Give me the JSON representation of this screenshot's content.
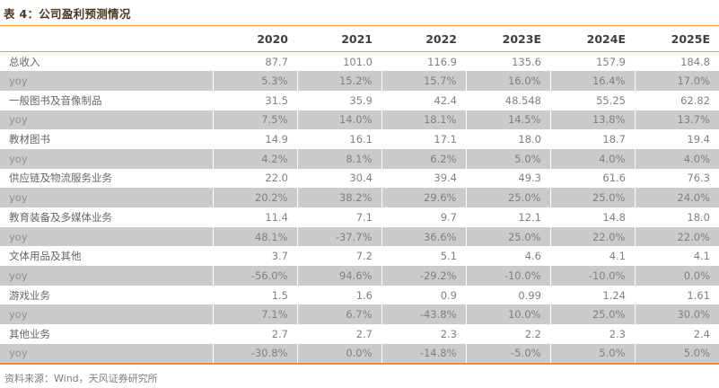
{
  "title": "表 4：公司盈利预测情况",
  "source": "资料来源：Wind，天风证券研究所",
  "colors": {
    "accent_orange": "#ED9851",
    "accent_orange_strong": "#E98C3F",
    "shaded_row": "#CBCBCB",
    "title_text": "#4A3827"
  },
  "table": {
    "label_header": "",
    "columns": [
      "2020",
      "2021",
      "2022",
      "2023E",
      "2024E",
      "2025E"
    ],
    "rows": [
      {
        "label": "总收入",
        "shaded": false,
        "values": [
          "87.7",
          "101.0",
          "116.9",
          "135.6",
          "157.9",
          "184.8"
        ]
      },
      {
        "label": "yoy",
        "shaded": true,
        "values": [
          "5.3%",
          "15.2%",
          "15.7%",
          "16.0%",
          "16.4%",
          "17.0%"
        ]
      },
      {
        "label": "一般图书及音像制品",
        "shaded": false,
        "values": [
          "31.5",
          "35.9",
          "42.4",
          "48.548",
          "55.25",
          "62.82"
        ]
      },
      {
        "label": "yoy",
        "shaded": true,
        "values": [
          "7.5%",
          "14.0%",
          "18.1%",
          "14.5%",
          "13.8%",
          "13.7%"
        ]
      },
      {
        "label": "教材图书",
        "shaded": false,
        "values": [
          "14.9",
          "16.1",
          "17.1",
          "18.0",
          "18.7",
          "19.4"
        ]
      },
      {
        "label": "yoy",
        "shaded": true,
        "values": [
          "4.2%",
          "8.1%",
          "6.2%",
          "5.0%",
          "4.0%",
          "4.0%"
        ]
      },
      {
        "label": "供应链及物流服务业务",
        "shaded": false,
        "values": [
          "22.0",
          "30.4",
          "39.4",
          "49.3",
          "61.6",
          "76.3"
        ]
      },
      {
        "label": "yoy",
        "shaded": true,
        "values": [
          "20.2%",
          "38.2%",
          "29.6%",
          "25.0%",
          "25.0%",
          "24.0%"
        ]
      },
      {
        "label": "教育装备及多媒体业务",
        "shaded": false,
        "values": [
          "11.4",
          "7.1",
          "9.7",
          "12.1",
          "14.8",
          "18.0"
        ]
      },
      {
        "label": "yoy",
        "shaded": true,
        "values": [
          "48.1%",
          "-37.7%",
          "36.6%",
          "25.0%",
          "22.0%",
          "22.0%"
        ]
      },
      {
        "label": "文体用品及其他",
        "shaded": false,
        "values": [
          "3.7",
          "7.2",
          "5.1",
          "4.6",
          "4.1",
          "4.1"
        ]
      },
      {
        "label": "yoy",
        "shaded": true,
        "values": [
          "-56.0%",
          "94.6%",
          "-29.2%",
          "-10.0%",
          "-10.0%",
          "0.0%"
        ]
      },
      {
        "label": "游戏业务",
        "shaded": false,
        "values": [
          "1.5",
          "1.6",
          "0.9",
          "0.99",
          "1.24",
          "1.61"
        ]
      },
      {
        "label": "yoy",
        "shaded": true,
        "values": [
          "7.1%",
          "6.7%",
          "-43.8%",
          "10.0%",
          "25.0%",
          "30.0%"
        ]
      },
      {
        "label": "其他业务",
        "shaded": false,
        "values": [
          "2.7",
          "2.7",
          "2.3",
          "2.2",
          "2.3",
          "2.4"
        ]
      },
      {
        "label": "yoy",
        "shaded": true,
        "values": [
          "-30.8%",
          "0.0%",
          "-14.8%",
          "-5.0%",
          "5.0%",
          "5.0%"
        ]
      }
    ]
  }
}
